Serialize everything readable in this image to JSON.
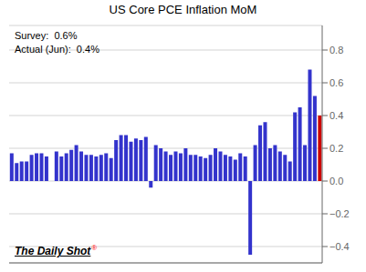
{
  "chart_data": {
    "type": "bar",
    "title": "US Core PCE Inflation MoM",
    "annotations": [
      "Survey:  0.6%",
      "Actual (Jun):  0.4%",
      "The Daily Shot",
      "®"
    ],
    "values": [
      0.17,
      0.11,
      0.12,
      0.12,
      0.16,
      0.17,
      0.17,
      0.15,
      0.0,
      0.18,
      0.15,
      0.17,
      0.19,
      0.22,
      0.18,
      0.16,
      0.16,
      0.15,
      0.16,
      0.17,
      0.14,
      0.25,
      0.28,
      0.28,
      0.24,
      0.26,
      0.25,
      0.27,
      -0.04,
      0.22,
      0.2,
      0.18,
      0.16,
      0.18,
      0.17,
      0.2,
      0.16,
      0.16,
      0.15,
      0.14,
      0.16,
      0.2,
      0.18,
      0.16,
      0.15,
      0.13,
      0.17,
      0.15,
      -0.45,
      0.22,
      0.34,
      0.36,
      0.2,
      0.22,
      0.18,
      0.16,
      0.12,
      0.42,
      0.45,
      0.22,
      0.68,
      0.52,
      0.4
    ],
    "colors": [
      "#3333cc",
      "#3333cc",
      "#3333cc",
      "#3333cc",
      "#3333cc",
      "#3333cc",
      "#3333cc",
      "#3333cc",
      "#3333cc",
      "#3333cc",
      "#3333cc",
      "#3333cc",
      "#3333cc",
      "#3333cc",
      "#3333cc",
      "#3333cc",
      "#3333cc",
      "#3333cc",
      "#3333cc",
      "#3333cc",
      "#3333cc",
      "#3333cc",
      "#3333cc",
      "#3333cc",
      "#3333cc",
      "#3333cc",
      "#3333cc",
      "#3333cc",
      "#3333cc",
      "#3333cc",
      "#3333cc",
      "#3333cc",
      "#3333cc",
      "#3333cc",
      "#3333cc",
      "#3333cc",
      "#3333cc",
      "#3333cc",
      "#3333cc",
      "#3333cc",
      "#3333cc",
      "#3333cc",
      "#3333cc",
      "#3333cc",
      "#3333cc",
      "#3333cc",
      "#3333cc",
      "#3333cc",
      "#3333cc",
      "#3333cc",
      "#3333cc",
      "#3333cc",
      "#3333cc",
      "#3333cc",
      "#3333cc",
      "#3333cc",
      "#3333cc",
      "#3333cc",
      "#3333cc",
      "#3333cc",
      "#3333cc",
      "#3333cc",
      "#cc0000"
    ],
    "ylim": [
      -0.5,
      0.95
    ],
    "yticks": [
      {
        "value": -0.4,
        "label": "−0.4"
      },
      {
        "value": -0.2,
        "label": "−0.2"
      },
      {
        "value": 0,
        "label": "0.0"
      },
      0.2,
      0.4,
      0.6,
      0.8
    ],
    "grid": true,
    "tick_labels": "y"
  }
}
